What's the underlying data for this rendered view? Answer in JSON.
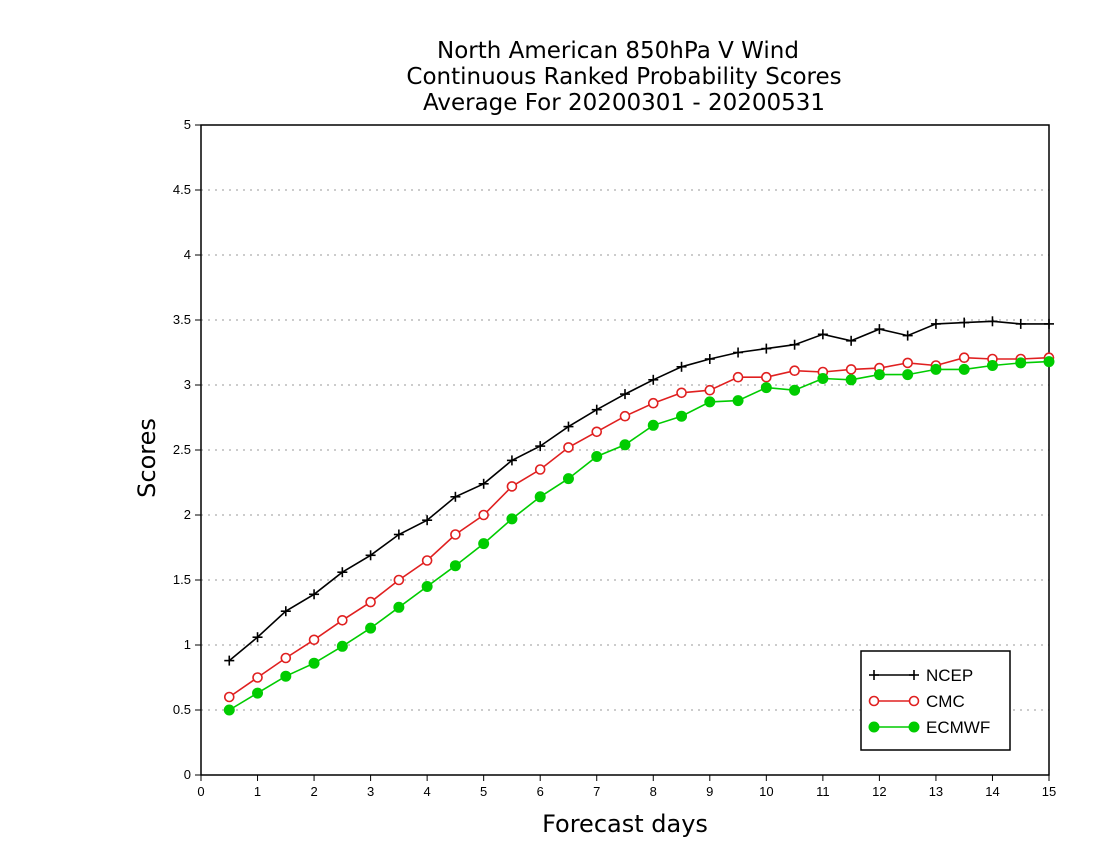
{
  "chart_data": {
    "type": "line",
    "title": [
      "North American 850hPa V Wind",
      "Continuous Ranked Probability Scores",
      "Average For 20200301 - 20200531"
    ],
    "xlabel": "Forecast days",
    "ylabel": "Scores",
    "xlim": [
      0,
      15
    ],
    "ylim": [
      0,
      5
    ],
    "xticks": [
      "0",
      "1",
      "2",
      "3",
      "4",
      "5",
      "6",
      "7",
      "8",
      "9",
      "10",
      "11",
      "12",
      "13",
      "14",
      "15"
    ],
    "yticks": [
      "0",
      "0.5",
      "1",
      "1.5",
      "2",
      "2.5",
      "3",
      "3.5",
      "4",
      "4.5",
      "5"
    ],
    "grid": true,
    "legend_position": "bottom-right",
    "x": [
      0.5,
      1,
      1.5,
      2,
      2.5,
      3,
      3.5,
      4,
      4.5,
      5,
      5.5,
      6,
      6.5,
      7,
      7.5,
      8,
      8.5,
      9,
      9.5,
      10,
      10.5,
      11,
      11.5,
      12,
      12.5,
      13,
      13.5,
      14,
      14.5,
      15
    ],
    "series": [
      {
        "name": "NCEP",
        "color": "#000000",
        "marker": "plus",
        "values": [
          0.88,
          1.06,
          1.26,
          1.39,
          1.56,
          1.69,
          1.85,
          1.96,
          2.14,
          2.24,
          2.42,
          2.53,
          2.68,
          2.81,
          2.93,
          3.04,
          3.14,
          3.2,
          3.25,
          3.28,
          3.31,
          3.39,
          3.34,
          3.43,
          3.38,
          3.47,
          3.48,
          3.49,
          3.47,
          3.47
        ]
      },
      {
        "name": "CMC",
        "color": "#e02020",
        "marker": "open-circle",
        "values": [
          0.6,
          0.75,
          0.9,
          1.04,
          1.19,
          1.33,
          1.5,
          1.65,
          1.85,
          2.0,
          2.22,
          2.35,
          2.52,
          2.64,
          2.76,
          2.86,
          2.94,
          2.96,
          3.06,
          3.06,
          3.11,
          3.1,
          3.12,
          3.13,
          3.17,
          3.15,
          3.21,
          3.2,
          3.2,
          3.21
        ]
      },
      {
        "name": "ECMWF",
        "color": "#00cc00",
        "marker": "filled-circle",
        "values": [
          0.5,
          0.63,
          0.76,
          0.86,
          0.99,
          1.13,
          1.29,
          1.45,
          1.61,
          1.78,
          1.97,
          2.14,
          2.28,
          2.45,
          2.54,
          2.69,
          2.76,
          2.87,
          2.88,
          2.98,
          2.96,
          3.05,
          3.04,
          3.08,
          3.08,
          3.12,
          3.12,
          3.15,
          3.17,
          3.18
        ]
      }
    ]
  }
}
